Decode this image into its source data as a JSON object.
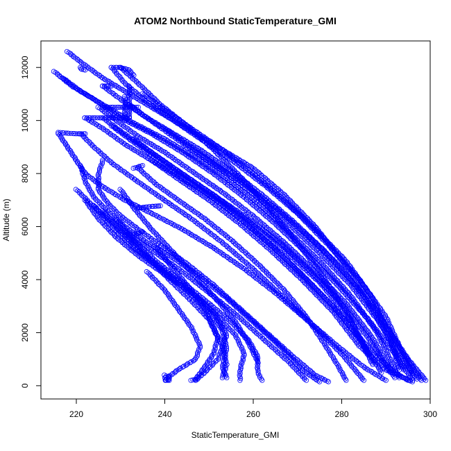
{
  "chart_data": {
    "type": "scatter",
    "title": "ATOM2 Northbound StaticTemperature_GMI",
    "xlabel": "StaticTemperature_GMI",
    "ylabel": "Altitude (m)",
    "xlim": [
      212,
      300
    ],
    "ylim": [
      -500,
      13000
    ],
    "x_ticks": [
      220,
      240,
      260,
      280,
      300
    ],
    "y_ticks": [
      0,
      2000,
      4000,
      6000,
      8000,
      10000,
      12000
    ],
    "grid": false,
    "marker": "open-circle",
    "color": "#0000ff",
    "series": [
      {
        "x": [
          218,
          221,
          226,
          232,
          238,
          245,
          252,
          260,
          267,
          274,
          281,
          288,
          294,
          298
        ],
        "y": [
          12600,
          12200,
          11600,
          11000,
          10400,
          9700,
          9000,
          8200,
          7200,
          6000,
          4500,
          2800,
          1200,
          200
        ]
      },
      {
        "x": [
          215,
          219,
          224,
          230,
          237,
          244,
          251,
          258,
          265,
          272,
          279,
          286,
          292,
          296
        ],
        "y": [
          11850,
          11300,
          10800,
          10100,
          9500,
          8800,
          8000,
          7100,
          6100,
          5000,
          3800,
          2500,
          1200,
          200
        ]
      },
      {
        "x": [
          217,
          221,
          227,
          233,
          240,
          247,
          254,
          261,
          268,
          275,
          282,
          288,
          293
        ],
        "y": [
          11600,
          11100,
          10500,
          9900,
          9300,
          8600,
          7800,
          6900,
          5800,
          4700,
          3400,
          2000,
          300
        ]
      },
      {
        "x": [
          228,
          231,
          236,
          242,
          249,
          256,
          263,
          270,
          277,
          284,
          290,
          296
        ],
        "y": [
          12000,
          11400,
          10700,
          10000,
          9200,
          8400,
          7500,
          6500,
          5300,
          4000,
          2600,
          400
        ]
      },
      {
        "x": [
          226,
          230,
          235,
          241,
          248,
          255,
          262,
          269,
          276,
          283,
          289,
          295,
          299
        ],
        "y": [
          11300,
          10800,
          10200,
          9600,
          8900,
          8100,
          7200,
          6200,
          5100,
          3800,
          2500,
          1000,
          200
        ]
      },
      {
        "x": [
          225,
          229,
          234,
          240,
          246,
          253,
          260,
          267,
          274,
          281,
          287,
          292
        ],
        "y": [
          10500,
          10000,
          9400,
          8800,
          8100,
          7300,
          6400,
          5400,
          4300,
          3100,
          1800,
          300
        ]
      },
      {
        "x": [
          222,
          226,
          231,
          237,
          243,
          250,
          257,
          264,
          271,
          278,
          284,
          290,
          296
        ],
        "y": [
          10100,
          9700,
          9100,
          8500,
          7800,
          7000,
          6100,
          5100,
          4000,
          2800,
          1500,
          600,
          150
        ]
      },
      {
        "x": [
          216,
          218,
          220,
          222,
          226,
          231,
          237,
          244,
          251,
          258,
          265,
          272,
          279,
          285,
          290
        ],
        "y": [
          9500,
          9000,
          8500,
          8000,
          7500,
          7000,
          6500,
          5900,
          5200,
          4400,
          3500,
          2500,
          1500,
          700,
          200
        ]
      },
      {
        "x": [
          221,
          224,
          228,
          233,
          239,
          246,
          253,
          260,
          267,
          274,
          280,
          285
        ],
        "y": [
          9500,
          9000,
          8400,
          7800,
          7100,
          6300,
          5400,
          4400,
          3300,
          2200,
          1200,
          200
        ]
      },
      {
        "x": [
          226,
          225,
          225,
          227,
          230,
          234,
          239,
          245,
          251,
          257,
          263,
          269,
          274,
          277
        ],
        "y": [
          8500,
          8000,
          7400,
          6900,
          6400,
          5900,
          5300,
          4600,
          3800,
          2900,
          2000,
          1100,
          400,
          150
        ]
      },
      {
        "x": [
          221,
          222,
          224,
          227,
          231,
          236,
          242,
          248,
          254,
          260,
          266,
          271,
          275
        ],
        "y": [
          8300,
          7700,
          7100,
          6600,
          6000,
          5400,
          4800,
          4100,
          3300,
          2400,
          1500,
          600,
          150
        ]
      },
      {
        "x": [
          220,
          223,
          227,
          232,
          238,
          244,
          250,
          256,
          262,
          268,
          272
        ],
        "y": [
          7400,
          6900,
          6300,
          5700,
          5000,
          4300,
          3500,
          2700,
          1800,
          900,
          200
        ]
      },
      {
        "x": [
          222,
          225,
          229,
          234,
          240,
          246,
          251,
          254,
          252,
          249,
          247
        ],
        "y": [
          7000,
          6300,
          5600,
          4900,
          4200,
          3500,
          2800,
          1900,
          1000,
          500,
          200
        ]
      },
      {
        "x": [
          224,
          228,
          233,
          239,
          245,
          250,
          253,
          254,
          253,
          254
        ],
        "y": [
          6800,
          6000,
          5200,
          4400,
          3600,
          2800,
          2100,
          1400,
          700,
          300
        ]
      },
      {
        "x": [
          226,
          230,
          235,
          241,
          247,
          252,
          256,
          258,
          257,
          257
        ],
        "y": [
          6600,
          5800,
          5000,
          4200,
          3400,
          2600,
          1900,
          1200,
          600,
          200
        ]
      },
      {
        "x": [
          229,
          233,
          238,
          244,
          250,
          255,
          259,
          261,
          261,
          262
        ],
        "y": [
          6300,
          5500,
          4700,
          3900,
          3100,
          2400,
          1700,
          1100,
          500,
          200
        ]
      },
      {
        "x": [
          231,
          236,
          241,
          246,
          250,
          252,
          251,
          249,
          247
        ],
        "y": [
          5800,
          4900,
          4000,
          3200,
          2500,
          1800,
          1200,
          700,
          250
        ]
      },
      {
        "x": [
          236,
          240,
          243,
          246,
          248,
          247,
          243,
          241,
          240
        ],
        "y": [
          4300,
          3600,
          2900,
          2200,
          1500,
          1000,
          600,
          350,
          300
        ]
      },
      {
        "x": [
          238,
          242,
          246,
          249,
          251,
          253,
          254,
          253
        ],
        "y": [
          5200,
          4400,
          3600,
          2900,
          2200,
          1500,
          800,
          300
        ]
      },
      {
        "x": [
          230,
          233,
          237,
          242,
          247,
          252,
          256,
          259,
          261
        ],
        "y": [
          7400,
          6700,
          5900,
          5000,
          4100,
          3200,
          2400,
          1600,
          900
        ]
      },
      {
        "x": [
          234,
          238,
          243,
          249,
          255,
          261,
          267,
          272,
          276,
          279,
          281
        ],
        "y": [
          8200,
          7600,
          7000,
          6300,
          5500,
          4600,
          3600,
          2600,
          1600,
          800,
          200
        ]
      },
      {
        "x": [
          237,
          242,
          248,
          254,
          260,
          266,
          272,
          278,
          283,
          288,
          292,
          295
        ],
        "y": [
          8500,
          8000,
          7400,
          6700,
          5900,
          5000,
          4000,
          3000,
          2000,
          1100,
          500,
          200
        ]
      },
      {
        "x": [
          230,
          234,
          239,
          245,
          251,
          257,
          263,
          269,
          275,
          281,
          286
        ],
        "y": [
          12000,
          11400,
          10600,
          9800,
          8900,
          7900,
          6800,
          5600,
          4300,
          2800,
          1200
        ]
      },
      {
        "x": [
          232,
          236,
          241,
          247,
          254,
          261,
          268,
          275,
          282,
          288,
          293,
          297
        ],
        "y": [
          10600,
          10100,
          9500,
          8800,
          8000,
          7100,
          6100,
          5000,
          3800,
          2500,
          1200,
          250
        ]
      },
      {
        "x": [
          228,
          232,
          237,
          243,
          250,
          257,
          264,
          271,
          278,
          284,
          289
        ],
        "y": [
          9800,
          9300,
          8700,
          8000,
          7200,
          6300,
          5300,
          4200,
          3000,
          1800,
          500
        ]
      },
      {
        "x": [
          226,
          230,
          236,
          243,
          251,
          259,
          267,
          275,
          282,
          287
        ],
        "y": [
          10100,
          9600,
          8900,
          8100,
          7200,
          6200,
          5100,
          3900,
          2500,
          800
        ]
      },
      {
        "x": [
          233,
          237,
          243,
          250,
          258,
          266,
          273,
          280,
          286,
          291
        ],
        "y": [
          9300,
          8800,
          8100,
          7300,
          6400,
          5400,
          4300,
          3100,
          1800,
          500
        ]
      },
      {
        "x": [
          240,
          245,
          251,
          258,
          265,
          272,
          279,
          285,
          290,
          294
        ],
        "y": [
          9700,
          9100,
          8400,
          7600,
          6700,
          5700,
          4600,
          3400,
          2000,
          600
        ]
      },
      {
        "x": [
          235,
          240,
          246,
          253,
          260,
          267,
          274,
          281,
          287,
          291,
          293
        ],
        "y": [
          11000,
          10400,
          9700,
          8900,
          8000,
          7000,
          5900,
          4700,
          3300,
          1800,
          600
        ]
      }
    ]
  },
  "clusters": [
    {
      "x": [
        226,
        228,
        230,
        232,
        234
      ],
      "y": [
        10500,
        10500,
        10500,
        10500,
        10500
      ]
    },
    {
      "x": [
        222,
        224,
        226,
        228,
        230,
        232
      ],
      "y": [
        10100,
        10100,
        10100,
        10100,
        10100,
        10100
      ]
    },
    {
      "x": [
        216,
        218,
        220,
        222
      ],
      "y": [
        9550,
        9520,
        9500,
        9500
      ]
    },
    {
      "x": [
        228,
        230,
        232,
        233
      ],
      "y": [
        12000,
        12000,
        11900,
        11700
      ]
    },
    {
      "x": [
        232,
        232,
        232,
        232,
        232
      ],
      "y": [
        11300,
        11000,
        10700,
        10400,
        10100
      ]
    },
    {
      "x": [
        231,
        231,
        231,
        231
      ],
      "y": [
        10900,
        10600,
        10300,
        10000
      ]
    },
    {
      "x": [
        234,
        235,
        236,
        237,
        238,
        239
      ],
      "y": [
        6700,
        6720,
        6740,
        6760,
        6770,
        6780
      ]
    },
    {
      "x": [
        233,
        234,
        235
      ],
      "y": [
        8200,
        8250,
        8300
      ]
    },
    {
      "x": [
        240,
        241,
        241,
        240,
        241
      ],
      "y": [
        400,
        300,
        250,
        200,
        200
      ]
    },
    {
      "x": [
        246,
        247,
        247
      ],
      "y": [
        200,
        250,
        200
      ]
    },
    {
      "x": [
        226,
        227,
        228
      ],
      "y": [
        11300,
        11300,
        11300
      ]
    },
    {
      "x": [
        221,
        221,
        222
      ],
      "y": [
        12000,
        11950,
        11900
      ]
    },
    {
      "x": [
        233,
        234,
        235
      ],
      "y": [
        5700,
        5750,
        5800
      ]
    }
  ]
}
